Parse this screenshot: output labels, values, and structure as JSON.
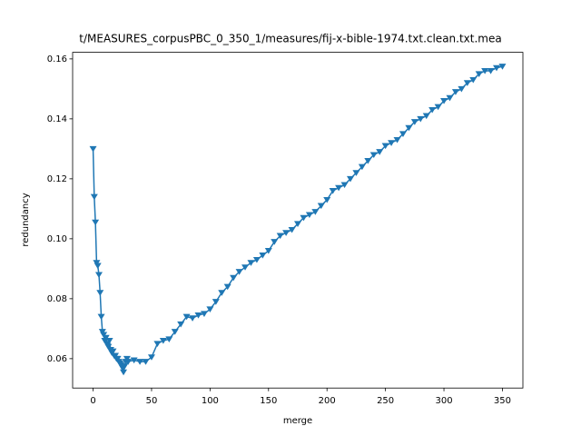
{
  "chart_data": {
    "type": "line",
    "title": "t/MEASURES_corpusPBC_0_350_1/measures/fij-x-bible-1974.txt.clean.txt.mea",
    "x_label": "merge",
    "y_label": "redundancy",
    "x": [
      0,
      1,
      2,
      3,
      4,
      5,
      6,
      7,
      8,
      9,
      10,
      11,
      12,
      13,
      14,
      15,
      16,
      17,
      18,
      19,
      20,
      21,
      22,
      23,
      24,
      25,
      26,
      27,
      28,
      29,
      30,
      35,
      40,
      45,
      50,
      55,
      60,
      65,
      70,
      75,
      80,
      85,
      90,
      95,
      100,
      105,
      110,
      115,
      120,
      125,
      130,
      135,
      140,
      145,
      150,
      155,
      160,
      165,
      170,
      175,
      180,
      185,
      190,
      195,
      200,
      205,
      210,
      215,
      220,
      225,
      230,
      235,
      240,
      245,
      250,
      255,
      260,
      265,
      270,
      275,
      280,
      285,
      290,
      295,
      300,
      305,
      310,
      315,
      320,
      325,
      330,
      335,
      340,
      345,
      350
    ],
    "series": [
      {
        "color": "#1f77b4",
        "marker": "triangle-down",
        "values": [
          0.13,
          0.114,
          0.1055,
          0.092,
          0.091,
          0.088,
          0.082,
          0.074,
          0.069,
          0.068,
          0.066,
          0.067,
          0.065,
          0.064,
          0.066,
          0.063,
          0.062,
          0.0625,
          0.061,
          0.061,
          0.06,
          0.06,
          0.059,
          0.0585,
          0.058,
          0.057,
          0.0555,
          0.0575,
          0.059,
          0.06,
          0.059,
          0.0595,
          0.059,
          0.059,
          0.0605,
          0.065,
          0.066,
          0.0665,
          0.069,
          0.0715,
          0.074,
          0.0735,
          0.0745,
          0.075,
          0.0765,
          0.079,
          0.082,
          0.084,
          0.087,
          0.089,
          0.0905,
          0.092,
          0.093,
          0.0945,
          0.096,
          0.099,
          0.101,
          0.102,
          0.103,
          0.105,
          0.107,
          0.108,
          0.109,
          0.111,
          0.113,
          0.116,
          0.117,
          0.118,
          0.12,
          0.122,
          0.124,
          0.126,
          0.128,
          0.129,
          0.131,
          0.132,
          0.133,
          0.135,
          0.137,
          0.139,
          0.14,
          0.141,
          0.143,
          0.144,
          0.146,
          0.147,
          0.149,
          0.15,
          0.152,
          0.153,
          0.155,
          0.156,
          0.156,
          0.157,
          0.1575
        ]
      }
    ],
    "xlim": [
      -17.5,
      367.5
    ],
    "xticks": [
      0,
      50,
      100,
      150,
      200,
      250,
      300,
      350
    ],
    "ylim": [
      0.0502,
      0.1622
    ],
    "yticks": [
      0.06,
      0.08,
      {
        "value": 0.1,
        "label": "0.10"
      },
      0.12,
      0.14,
      0.16
    ]
  }
}
